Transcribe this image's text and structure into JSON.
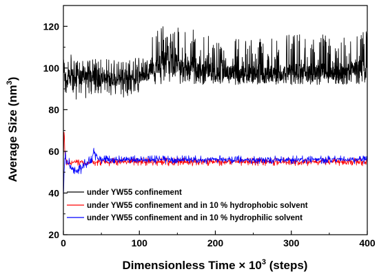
{
  "chart_data": {
    "type": "line",
    "xlabel": "Dimensionless Time × 10",
    "xlabel_superscript": "3",
    "xlabel_suffix": " (steps)",
    "ylabel": "Average Size (nm",
    "ylabel_superscript": "3",
    "ylabel_suffix": ")",
    "xlim": [
      0,
      400
    ],
    "ylim": [
      20,
      130
    ],
    "x_ticks": [
      0,
      100,
      200,
      300,
      400
    ],
    "y_ticks": [
      20,
      40,
      60,
      80,
      100,
      120
    ],
    "grid": false,
    "legend_position": "bottom-left",
    "series": [
      {
        "name": "under YW55 confinement",
        "color": "#000000",
        "x": [
          0,
          5,
          10,
          15,
          20,
          30,
          40,
          50,
          60,
          70,
          80,
          90,
          100,
          110,
          115,
          120,
          130,
          140,
          150,
          160,
          170,
          180,
          190,
          200,
          220,
          240,
          260,
          280,
          300,
          320,
          340,
          360,
          380,
          400
        ],
        "y": [
          96,
          94,
          97,
          93,
          96,
          95,
          97,
          95,
          96,
          94,
          96,
          95,
          96,
          95,
          101,
          100,
          103,
          102,
          102,
          101,
          101,
          99,
          99,
          98,
          98,
          97,
          97,
          97,
          98,
          98,
          98,
          98,
          99,
          99
        ],
        "y_min": [
          88,
          87,
          86,
          85,
          85,
          85,
          86,
          86,
          87,
          86,
          86,
          87,
          87,
          89,
          93,
          92,
          92,
          92,
          92,
          92,
          92,
          92,
          92,
          92,
          92,
          92,
          92,
          92,
          92,
          92,
          92,
          92,
          92,
          92
        ],
        "y_max": [
          104,
          103,
          108,
          104,
          104,
          103,
          105,
          104,
          105,
          104,
          104,
          104,
          106,
          104,
          115,
          118,
          121,
          121,
          120,
          119,
          119,
          117,
          116,
          115,
          115,
          114,
          115,
          115,
          116,
          116,
          116,
          116,
          117,
          118
        ]
      },
      {
        "name": "under YW55 confinement and in 10 % hydrophobic solvent",
        "color": "#ff0000",
        "x": [
          0,
          1,
          2,
          4,
          6,
          8,
          10,
          15,
          20,
          30,
          40,
          50,
          100,
          150,
          200,
          250,
          300,
          350,
          400
        ],
        "y": [
          55,
          70,
          58,
          55,
          54,
          55,
          54,
          55,
          55,
          54,
          55,
          55,
          55,
          55,
          55,
          55,
          55,
          55,
          55
        ],
        "y_min": [
          50,
          60,
          54,
          53,
          52,
          53,
          52,
          53,
          53,
          53,
          53,
          53,
          53,
          53,
          53,
          53,
          53,
          53,
          53
        ],
        "y_max": [
          58,
          71,
          60,
          57,
          56,
          57,
          56,
          56,
          56,
          56,
          56,
          57,
          57,
          57,
          57,
          57,
          57,
          57,
          57
        ]
      },
      {
        "name": "under YW55 confinement and in 10 % hydrophilic solvent",
        "color": "#0000ff",
        "x": [
          0,
          2,
          5,
          10,
          15,
          20,
          25,
          30,
          35,
          40,
          45,
          50,
          100,
          150,
          200,
          250,
          300,
          350,
          400
        ],
        "y": [
          40,
          58,
          55,
          53,
          51,
          50,
          52,
          54,
          55,
          60,
          57,
          56,
          56,
          56,
          56,
          56,
          56,
          56,
          56
        ],
        "y_min": [
          36,
          52,
          53,
          50,
          49,
          48,
          49,
          51,
          53,
          56,
          55,
          54,
          54,
          54,
          54,
          54,
          54,
          54,
          54
        ],
        "y_max": [
          45,
          62,
          58,
          56,
          53,
          54,
          55,
          57,
          58,
          62,
          59,
          58,
          58,
          58,
          58,
          58,
          58,
          58,
          58
        ]
      }
    ]
  }
}
